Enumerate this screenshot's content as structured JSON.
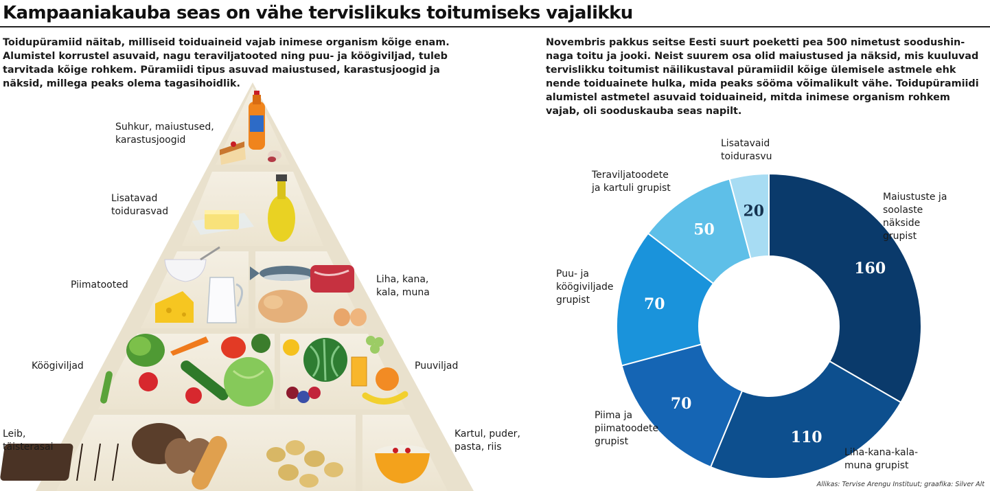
{
  "title": "Kampaaniakauba seas on vähe tervislikuks toitumiseks vajalikku",
  "intro_left": "Toidupüramiid näitab, milliseid toiduaineid vajab inimese organism kõige enam.\nAlumistel korrustel asuvaid, nagu teraviljatooted ning puu- ja köögiviljad, tuleb\ntarvitada kõige rohkem. Püramiidi tipus asuvad maiustused, karastusjoogid ja\nnäksid, millega peaks olema tagasihoidlik.",
  "intro_right": "Novembris pakkus seitse Eesti suurt poeketti pea 500 nimetust soodushin-\nnaga toitu ja jooki. Neist suurem osa olid maiustused ja näksid, mis kuuluvad\ntervislikku toitumist näilikustaval püramiidil kõige ülemisele astmele ehk\nnende toiduainete hulka, mida peaks sööma võimalikult vähe. Toidupüramiidi\nalumistel astmetel asuvaid toiduaineid, mitda inimese organism rohkem\nvajab, oli sooduskauba seas napilt.",
  "pyramid": {
    "levels": {
      "sweets": "Suhkur, maiustused,\nkarastusjoogid",
      "fats": "Lisatavad\ntoidurasvad",
      "dairy": "Piimatooted",
      "meat": "Liha, kana,\nkala, muna",
      "vegetables": "Köögiviljad",
      "fruit": "Puuviljad",
      "bread": "Leib,\ntäisterasai",
      "grains": "Kartul, puder,\npasta, riis"
    }
  },
  "chart_data": {
    "type": "pie",
    "subtype": "donut",
    "series": [
      {
        "label": "Maiustuste ja\nsoolaste\nnäkside\ngrupist",
        "value": 160,
        "color": "#0a3a6b"
      },
      {
        "label": "Liha-kana-kala-\nmuna grupist",
        "value": 110,
        "color": "#0d4f8e"
      },
      {
        "label": "Piima ja\npiimatoodete\ngrupist",
        "value": 70,
        "color": "#1565b4"
      },
      {
        "label": "Puu- ja\nköögiviljade\ngrupist",
        "value": 70,
        "color": "#1a93db"
      },
      {
        "label": "Teraviljatoodete\nja kartuli grupist",
        "value": 50,
        "color": "#5ebfe8"
      },
      {
        "label": "Lisatavaid\ntoidurasvu",
        "value": 20,
        "color": "#a7dcf3"
      }
    ]
  },
  "source": "Allikas: Tervise Arengu Instituut; graafika: Silver Alt"
}
